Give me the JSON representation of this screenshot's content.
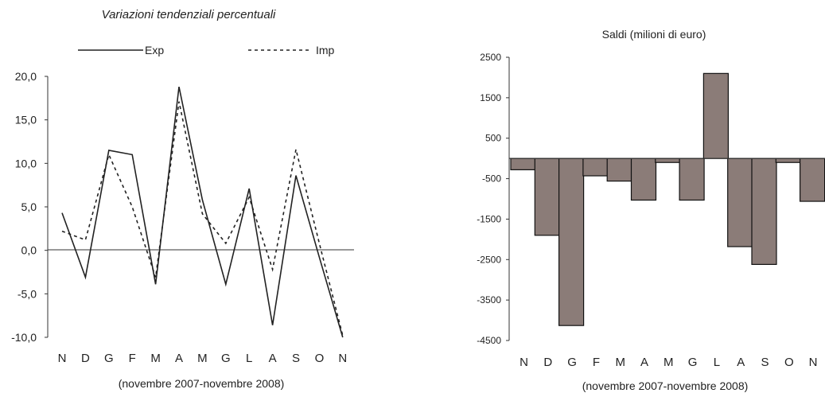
{
  "chart_data": [
    {
      "type": "line",
      "title": "Variazioni tendenziali percentuali",
      "xlabel": "(novembre 2007-novembre 2008)",
      "ylabel": "",
      "categories": [
        "N",
        "D",
        "G",
        "F",
        "M",
        "A",
        "M",
        "G",
        "L",
        "A",
        "S",
        "O",
        "N"
      ],
      "yticks": [
        "20,0",
        "15,0",
        "10,0",
        "5,0",
        "0,0",
        "-5,0",
        "-10,0"
      ],
      "ylim": [
        -10,
        20
      ],
      "legend_position": "top",
      "series": [
        {
          "name": "Exp",
          "style": "solid",
          "color": "#222222",
          "values": [
            4.3,
            -3.1,
            11.5,
            11.0,
            -3.9,
            18.8,
            5.8,
            -3.9,
            7.1,
            -8.6,
            8.6,
            -0.8,
            -10.3
          ]
        },
        {
          "name": "Imp",
          "style": "dashed",
          "color": "#222222",
          "values": [
            2.2,
            1.2,
            11.0,
            5.0,
            -3.1,
            17.1,
            4.2,
            0.8,
            6.1,
            -2.2,
            11.6,
            0.8,
            -9.8
          ]
        }
      ]
    },
    {
      "type": "bar",
      "title": "Saldi (milioni di euro)",
      "xlabel": "(novembre 2007-novembre 2008)",
      "ylabel": "",
      "categories": [
        "N",
        "D",
        "G",
        "F",
        "M",
        "A",
        "M",
        "G",
        "L",
        "A",
        "S",
        "O",
        "N"
      ],
      "yticks": [
        "2500",
        "1500",
        "500",
        "-500",
        "-1500",
        "-2500",
        "-3500",
        "-4500"
      ],
      "ylim": [
        -4500,
        2500
      ],
      "bar_color": "#8b7c78",
      "values": [
        -280,
        -1900,
        -4130,
        -430,
        -560,
        -1030,
        -100,
        -1030,
        2100,
        -2180,
        -2620,
        -100,
        -1060
      ]
    }
  ]
}
